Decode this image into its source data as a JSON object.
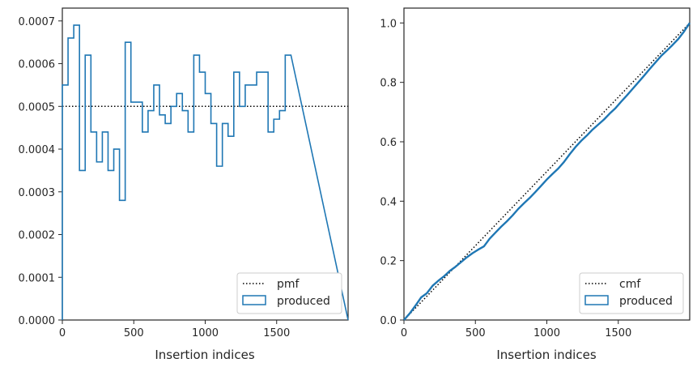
{
  "chart_data": [
    {
      "type": "histogram-step",
      "xlabel": "Insertion indices",
      "ylabel": "",
      "xlim": [
        0,
        2000
      ],
      "ylim": [
        0,
        0.00073
      ],
      "xticks": [
        0,
        500,
        1000,
        1500
      ],
      "xtick_labels": [
        "0",
        "500",
        "1000",
        "1500"
      ],
      "yticks": [
        0,
        0.0001,
        0.0002,
        0.0003,
        0.0004,
        0.0005,
        0.0006,
        0.0007
      ],
      "ytick_labels": [
        "0.0000",
        "0.0001",
        "0.0002",
        "0.0003",
        "0.0004",
        "0.0005",
        "0.0006",
        "0.0007"
      ],
      "bin_width": 40,
      "reference_line": {
        "name": "pmf",
        "y": 0.0005,
        "style": "dotted",
        "color": "#000000"
      },
      "series": [
        {
          "name": "produced",
          "color": "#1f77b4",
          "values": [
            0.00055,
            0.00066,
            0.00069,
            0.00035,
            0.00062,
            0.00044,
            0.00037,
            0.00044,
            0.00035,
            0.0004,
            0.00028,
            0.00065,
            0.00051,
            0.00051,
            0.00044,
            0.00049,
            0.00055,
            0.00048,
            0.00046,
            0.0005,
            0.00053,
            0.00049,
            0.00044,
            0.00062,
            0.00058,
            0.00053,
            0.00046,
            0.00036,
            0.00046,
            0.00043,
            0.00058,
            0.0005,
            0.00055,
            0.00055,
            0.00058,
            0.00058,
            0.00044,
            0.00047,
            0.00049,
            0.00062
          ]
        }
      ],
      "legend": {
        "position": "lower-right",
        "entries": [
          "pmf",
          "produced"
        ]
      }
    },
    {
      "type": "line",
      "xlabel": "Insertion indices",
      "ylabel": "",
      "xlim": [
        0,
        2000
      ],
      "ylim": [
        0,
        1.05
      ],
      "xticks": [
        0,
        500,
        1000,
        1500
      ],
      "xtick_labels": [
        "0",
        "500",
        "1000",
        "1500"
      ],
      "yticks": [
        0,
        0.2,
        0.4,
        0.6,
        0.8,
        1.0
      ],
      "ytick_labels": [
        "0.0",
        "0.2",
        "0.4",
        "0.6",
        "0.8",
        "1.0"
      ],
      "reference_line": {
        "name": "cmf",
        "points": [
          [
            0,
            0
          ],
          [
            2000,
            1.0
          ]
        ],
        "style": "dotted",
        "color": "#000000"
      },
      "series": [
        {
          "name": "produced",
          "color": "#1f77b4",
          "x": [
            0,
            40,
            80,
            120,
            160,
            200,
            240,
            280,
            320,
            360,
            400,
            440,
            480,
            520,
            560,
            600,
            640,
            680,
            720,
            760,
            800,
            840,
            880,
            920,
            960,
            1000,
            1040,
            1080,
            1120,
            1160,
            1200,
            1240,
            1280,
            1320,
            1360,
            1400,
            1440,
            1480,
            1520,
            1560,
            1600,
            1640,
            1680,
            1720,
            1760,
            1800,
            1840,
            1880,
            1920,
            1960,
            2000
          ],
          "y": [
            0,
            0.022,
            0.048,
            0.076,
            0.09,
            0.115,
            0.132,
            0.147,
            0.165,
            0.179,
            0.195,
            0.211,
            0.225,
            0.237,
            0.248,
            0.274,
            0.294,
            0.314,
            0.332,
            0.352,
            0.374,
            0.393,
            0.411,
            0.431,
            0.452,
            0.473,
            0.492,
            0.51,
            0.532,
            0.558,
            0.582,
            0.603,
            0.621,
            0.641,
            0.658,
            0.675,
            0.695,
            0.713,
            0.735,
            0.756,
            0.778,
            0.8,
            0.822,
            0.845,
            0.867,
            0.889,
            0.907,
            0.926,
            0.946,
            0.971,
            1.0
          ]
        }
      ],
      "legend": {
        "position": "lower-right",
        "entries": [
          "cmf",
          "produced"
        ]
      }
    }
  ]
}
